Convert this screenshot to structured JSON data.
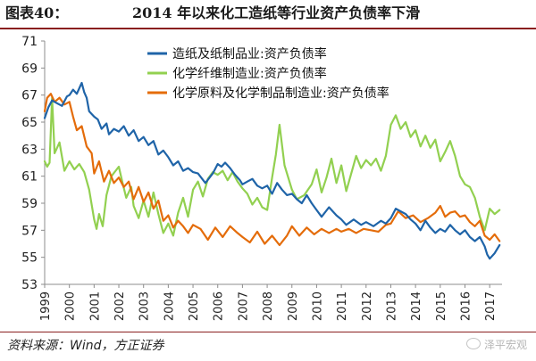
{
  "figure": {
    "label": "图表40：",
    "title": "2014 年以来化工造纸等行业资产负债率下滑"
  },
  "source": "资料来源：Wind，方正证券",
  "watermark": "泽平宏观",
  "chart_data": {
    "type": "line",
    "title": "",
    "xlabel": "",
    "ylabel": "",
    "ylim": [
      53,
      71
    ],
    "xlim": [
      1999,
      2017.5
    ],
    "yticks": [
      "53",
      "55",
      "57",
      "59",
      "61",
      "63",
      "65",
      "67",
      "69",
      "71"
    ],
    "xticks": [
      "1999",
      "2000",
      "2001",
      "2002",
      "2003",
      "2004",
      "2005",
      "2006",
      "2007",
      "2008",
      "2009",
      "2010",
      "2011",
      "2012",
      "2013",
      "2014",
      "2015",
      "2016",
      "2017"
    ],
    "grid": false,
    "legend_position": "top-center",
    "series": [
      {
        "name": "造纸及纸制品业:资产负债率",
        "color": "#1f64a8",
        "x": [
          1999,
          1999.15,
          1999.3,
          1999.5,
          1999.7,
          1999.9,
          2000.0,
          2000.15,
          2000.3,
          2000.45,
          2000.5,
          2000.6,
          2000.7,
          2000.8,
          2001.0,
          2001.15,
          2001.3,
          2001.5,
          2001.6,
          2001.8,
          2002.0,
          2002.2,
          2002.4,
          2002.6,
          2002.8,
          2003.0,
          2003.2,
          2003.4,
          2003.6,
          2003.8,
          2004.0,
          2004.2,
          2004.4,
          2004.6,
          2004.8,
          2005.0,
          2005.2,
          2005.5,
          2005.8,
          2006.0,
          2006.15,
          2006.3,
          2006.5,
          2006.7,
          2006.9,
          2007.0,
          2007.2,
          2007.4,
          2007.6,
          2007.8,
          2008.0,
          2008.2,
          2008.4,
          2008.6,
          2008.8,
          2009.0,
          2009.2,
          2009.4,
          2009.6,
          2009.8,
          2010.0,
          2010.2,
          2010.5,
          2010.8,
          2011.0,
          2011.2,
          2011.5,
          2011.8,
          2012.0,
          2012.3,
          2012.6,
          2012.8,
          2013.0,
          2013.2,
          2013.4,
          2013.6,
          2013.8,
          2014.0,
          2014.2,
          2014.4,
          2014.6,
          2014.8,
          2015.0,
          2015.2,
          2015.4,
          2015.6,
          2015.8,
          2016.0,
          2016.2,
          2016.4,
          2016.6,
          2016.8,
          2016.9,
          2017.0,
          2017.2,
          2017.4
        ],
        "values": [
          65.3,
          66.1,
          66.6,
          66.4,
          66.2,
          66.9,
          67.0,
          67.4,
          67.1,
          67.7,
          67.9,
          67.2,
          66.8,
          65.8,
          65.4,
          65.2,
          64.5,
          64.9,
          64.1,
          64.5,
          64.3,
          64.7,
          64.0,
          64.4,
          63.6,
          63.9,
          63.3,
          63.6,
          62.6,
          62.9,
          62.4,
          61.8,
          62.1,
          61.4,
          61.6,
          61.3,
          61.2,
          60.5,
          61.2,
          61.9,
          61.7,
          62.0,
          61.6,
          61.1,
          60.7,
          60.4,
          60.6,
          60.8,
          60.3,
          60.1,
          60.3,
          59.7,
          60.5,
          60.0,
          59.6,
          59.7,
          59.3,
          59.0,
          59.6,
          59.0,
          58.5,
          58.0,
          58.7,
          58.1,
          57.8,
          57.4,
          57.8,
          57.4,
          57.6,
          57.3,
          57.7,
          57.5,
          57.9,
          58.6,
          58.4,
          58.2,
          57.8,
          57.5,
          57.0,
          57.7,
          57.2,
          56.8,
          57.1,
          56.9,
          57.4,
          57.0,
          56.7,
          57.0,
          56.5,
          56.2,
          56.5,
          55.8,
          55.2,
          54.9,
          55.3,
          55.9
        ]
      },
      {
        "name": "化学纤维制造业:资产负债率",
        "color": "#92d050",
        "x": [
          1999,
          1999.1,
          1999.2,
          1999.3,
          1999.4,
          1999.6,
          1999.8,
          2000.0,
          2000.2,
          2000.4,
          2000.6,
          2000.8,
          2001.0,
          2001.1,
          2001.2,
          2001.35,
          2001.5,
          2001.7,
          2002.0,
          2002.15,
          2002.3,
          2002.5,
          2002.6,
          2002.8,
          2003.0,
          2003.2,
          2003.4,
          2003.6,
          2003.8,
          2004.0,
          2004.2,
          2004.4,
          2004.6,
          2004.8,
          2005.0,
          2005.2,
          2005.4,
          2005.6,
          2005.8,
          2006.0,
          2006.2,
          2006.4,
          2006.6,
          2006.8,
          2007.0,
          2007.2,
          2007.4,
          2007.6,
          2007.8,
          2008.0,
          2008.2,
          2008.35,
          2008.5,
          2008.7,
          2009.0,
          2009.2,
          2009.5,
          2009.8,
          2010.0,
          2010.2,
          2010.4,
          2010.6,
          2010.8,
          2011.0,
          2011.2,
          2011.4,
          2011.6,
          2011.8,
          2012.0,
          2012.2,
          2012.4,
          2012.6,
          2012.8,
          2013.0,
          2013.2,
          2013.4,
          2013.6,
          2013.8,
          2014.0,
          2014.2,
          2014.4,
          2014.6,
          2014.8,
          2015.0,
          2015.2,
          2015.4,
          2015.6,
          2015.8,
          2016.0,
          2016.2,
          2016.4,
          2016.6,
          2016.8,
          2017.0,
          2017.2,
          2017.4
        ],
        "values": [
          62.1,
          61.7,
          62.0,
          66.8,
          62.7,
          63.5,
          61.4,
          62.1,
          61.5,
          61.9,
          61.3,
          60.0,
          57.8,
          57.1,
          58.2,
          57.3,
          59.6,
          61.0,
          61.7,
          60.5,
          59.4,
          60.2,
          58.8,
          57.9,
          59.2,
          58.0,
          59.8,
          58.2,
          56.8,
          57.5,
          56.6,
          58.3,
          59.4,
          58.0,
          60.0,
          60.6,
          59.5,
          60.8,
          61.3,
          61.1,
          61.4,
          60.7,
          61.3,
          60.6,
          60.1,
          59.7,
          58.9,
          59.4,
          58.7,
          58.5,
          60.9,
          62.6,
          64.8,
          61.8,
          60.0,
          59.3,
          59.6,
          60.4,
          61.5,
          59.8,
          60.9,
          62.3,
          60.5,
          61.8,
          59.9,
          61.2,
          62.5,
          61.6,
          62.2,
          61.8,
          62.3,
          61.4,
          62.5,
          64.8,
          65.5,
          64.5,
          65.0,
          63.9,
          64.4,
          63.2,
          64.0,
          63.1,
          63.7,
          62.1,
          62.8,
          63.6,
          62.5,
          61.0,
          60.4,
          60.2,
          59.4,
          58.0,
          57.0,
          58.6,
          58.2,
          58.5
        ]
      },
      {
        "name": "化学原料及化学制品制造业:资产负债率",
        "color": "#e46c0a",
        "x": [
          1999,
          1999.1,
          1999.25,
          1999.4,
          1999.6,
          1999.8,
          2000.0,
          2000.15,
          2000.3,
          2000.5,
          2000.7,
          2000.9,
          2001.0,
          2001.2,
          2001.4,
          2001.6,
          2001.8,
          2002.0,
          2002.2,
          2002.4,
          2002.6,
          2002.8,
          2003.0,
          2003.2,
          2003.4,
          2003.6,
          2003.8,
          2004.0,
          2004.2,
          2004.4,
          2004.6,
          2004.8,
          2005.0,
          2005.3,
          2005.6,
          2005.9,
          2006.2,
          2006.5,
          2006.8,
          2007.0,
          2007.3,
          2007.6,
          2007.9,
          2008.2,
          2008.5,
          2008.8,
          2009.0,
          2009.3,
          2009.6,
          2009.9,
          2010.2,
          2010.5,
          2010.8,
          2011.0,
          2011.3,
          2011.6,
          2011.9,
          2012.2,
          2012.5,
          2012.8,
          2013.0,
          2013.3,
          2013.6,
          2013.9,
          2014.2,
          2014.5,
          2014.8,
          2015.0,
          2015.2,
          2015.4,
          2015.6,
          2015.8,
          2016.0,
          2016.2,
          2016.4,
          2016.6,
          2016.8,
          2017.0,
          2017.2,
          2017.4
        ],
        "values": [
          65.8,
          66.8,
          67.1,
          66.5,
          66.8,
          66.3,
          66.5,
          65.4,
          64.4,
          64.7,
          63.2,
          62.7,
          61.2,
          62.1,
          60.6,
          61.4,
          60.5,
          60.9,
          60.2,
          60.6,
          59.3,
          60.2,
          59.1,
          59.8,
          58.6,
          59.2,
          57.7,
          58.1,
          57.2,
          57.7,
          57.3,
          56.8,
          57.4,
          57.1,
          56.3,
          57.2,
          56.5,
          57.3,
          56.8,
          56.5,
          56.1,
          56.9,
          56.0,
          56.6,
          55.9,
          56.6,
          57.3,
          56.6,
          57.2,
          56.7,
          57.1,
          56.8,
          57.1,
          56.9,
          57.1,
          56.8,
          57.1,
          57.0,
          56.9,
          57.4,
          57.5,
          58.4,
          57.9,
          58.1,
          57.6,
          57.9,
          58.3,
          58.8,
          58.0,
          58.3,
          58.4,
          58.0,
          58.1,
          57.6,
          57.3,
          57.7,
          56.6,
          56.3,
          56.7,
          56.2
        ]
      }
    ]
  }
}
